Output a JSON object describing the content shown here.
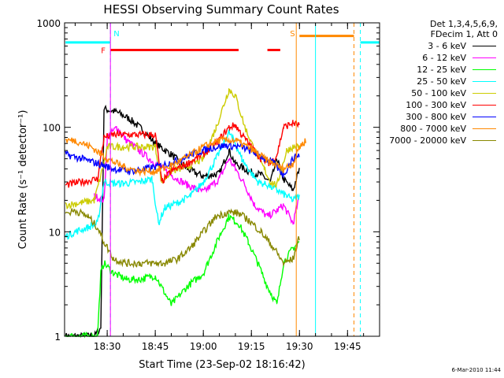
{
  "chart_data": {
    "type": "line",
    "title": "HESSI Observing Summary Count Rates",
    "xlabel": "Start Time (23-Sep-02 18:16:42)",
    "ylabel": "Count Rate (s⁻¹ detector⁻¹)",
    "y_scale": "log",
    "ylim": [
      1,
      1000
    ],
    "xlim": [
      "18:16:42",
      "19:55:00"
    ],
    "x_ticks": [
      "18:30",
      "18:45",
      "19:00",
      "19:15",
      "19:30",
      "19:45"
    ],
    "y_ticks": [
      "1",
      "10",
      "100",
      "1000"
    ],
    "legend_header": [
      "Det 1,3,4,5,6,9,",
      "FDecim 1, Att 0"
    ],
    "legend_placement": "right",
    "series": [
      {
        "name": "3 - 6 keV",
        "color": "#000000",
        "x": [
          "18:17",
          "18:26",
          "18:28",
          "18:29",
          "18:33",
          "18:37",
          "18:41",
          "18:45",
          "18:50",
          "18:55",
          "19:00",
          "19:05",
          "19:08",
          "19:10",
          "19:14",
          "19:18",
          "19:21",
          "19:23",
          "19:25",
          "19:28",
          "19:30"
        ],
        "values": [
          1,
          1,
          1.2,
          150,
          140,
          120,
          95,
          70,
          55,
          40,
          34,
          36,
          60,
          45,
          38,
          35,
          30,
          50,
          32,
          25,
          40
        ]
      },
      {
        "name": "6 - 12 keV",
        "color": "#ff00ff",
        "x": [
          "18:26",
          "18:29",
          "18:30",
          "18:33",
          "18:36",
          "18:40",
          "18:45",
          "18:50",
          "18:55",
          "19:00",
          "19:05",
          "19:08",
          "19:10",
          "19:13",
          "19:16",
          "19:20",
          "19:23",
          "19:25",
          "19:28",
          "19:30"
        ],
        "values": [
          22,
          20,
          80,
          100,
          75,
          60,
          45,
          35,
          28,
          24,
          32,
          50,
          40,
          28,
          18,
          14,
          16,
          18,
          12,
          22
        ]
      },
      {
        "name": "12 - 25 keV",
        "color": "#00ff00",
        "x": [
          "18:17",
          "18:22",
          "18:27",
          "18:28",
          "18:29",
          "18:32",
          "18:36",
          "18:40",
          "18:45",
          "18:50",
          "18:55",
          "19:00",
          "19:05",
          "19:08",
          "19:11",
          "19:14",
          "19:17",
          "19:20",
          "19:23",
          "19:25",
          "19:28",
          "19:30"
        ],
        "values": [
          1,
          1,
          1,
          4,
          5,
          4,
          3.5,
          3.5,
          3.8,
          2,
          3,
          4,
          9,
          14,
          12,
          8,
          5,
          3,
          2,
          5,
          7,
          8
        ]
      },
      {
        "name": "25 - 50 keV",
        "color": "#00ffff",
        "x": [
          "18:17",
          "18:20",
          "18:24",
          "18:27",
          "18:29",
          "18:32",
          "18:35",
          "18:40",
          "18:44",
          "18:46",
          "18:48",
          "18:52",
          "18:56",
          "19:00",
          "19:04",
          "19:08",
          "19:10",
          "19:12",
          "19:14",
          "19:17",
          "19:20",
          "19:23",
          "19:26",
          "19:28",
          "19:30"
        ],
        "values": [
          9,
          10,
          11,
          12,
          30,
          29,
          29,
          30,
          32,
          12,
          17,
          19,
          22,
          30,
          50,
          90,
          70,
          50,
          40,
          30,
          28,
          25,
          22,
          20,
          22
        ]
      },
      {
        "name": "50 - 100 keV",
        "color": "#cccc00",
        "x": [
          "18:17",
          "18:22",
          "18:26",
          "18:29",
          "18:30",
          "18:35",
          "18:40",
          "18:45",
          "18:47",
          "18:50",
          "18:55",
          "19:00",
          "19:04",
          "19:08",
          "19:10",
          "19:13",
          "19:16",
          "19:19",
          "19:21",
          "19:23",
          "19:26",
          "19:28",
          "19:30"
        ],
        "values": [
          18,
          19,
          20,
          45,
          65,
          65,
          65,
          65,
          30,
          38,
          42,
          50,
          100,
          230,
          200,
          100,
          60,
          40,
          30,
          28,
          60,
          65,
          65
        ]
      },
      {
        "name": "100 - 300 keV",
        "color": "#ff0000",
        "x": [
          "18:17",
          "18:22",
          "18:27",
          "18:29",
          "18:32",
          "18:35",
          "18:40",
          "18:45",
          "18:47",
          "18:50",
          "18:55",
          "19:00",
          "19:04",
          "19:08",
          "19:10",
          "19:12",
          "19:15",
          "19:18",
          "19:21",
          "19:23",
          "19:25",
          "19:28",
          "19:30"
        ],
        "values": [
          28,
          30,
          32,
          80,
          85,
          85,
          85,
          85,
          30,
          38,
          45,
          55,
          70,
          100,
          105,
          85,
          65,
          50,
          45,
          55,
          100,
          110,
          105
        ]
      },
      {
        "name": "300 - 800 keV",
        "color": "#0000ff",
        "x": [
          "18:17",
          "18:22",
          "18:27",
          "18:32",
          "18:37",
          "18:42",
          "18:47",
          "18:52",
          "18:57",
          "19:02",
          "19:07",
          "19:12",
          "19:17",
          "19:22",
          "19:25",
          "19:28",
          "19:30"
        ],
        "values": [
          55,
          50,
          45,
          40,
          38,
          40,
          43,
          48,
          56,
          63,
          67,
          65,
          55,
          45,
          35,
          50,
          55
        ]
      },
      {
        "name": "800 - 7000 keV",
        "color": "#ff8800",
        "x": [
          "18:17",
          "18:20",
          "18:25",
          "18:30",
          "18:35",
          "18:40",
          "18:45",
          "18:50",
          "18:55",
          "19:00",
          "19:05",
          "19:10",
          "19:15",
          "19:20",
          "19:25",
          "19:28",
          "19:30",
          "19:32"
        ],
        "values": [
          75,
          75,
          65,
          50,
          42,
          38,
          38,
          43,
          52,
          65,
          75,
          75,
          62,
          48,
          40,
          45,
          65,
          75
        ]
      },
      {
        "name": "7000 - 20000 keV",
        "color": "#888800",
        "x": [
          "18:17",
          "18:20",
          "18:24",
          "18:27",
          "18:29",
          "18:32",
          "18:36",
          "18:40",
          "18:44",
          "18:48",
          "18:52",
          "18:56",
          "19:00",
          "19:04",
          "19:08",
          "19:11",
          "19:14",
          "19:18",
          "19:22",
          "19:25",
          "19:28",
          "19:30"
        ],
        "values": [
          15,
          16,
          14,
          11,
          8,
          5.5,
          5,
          5,
          5,
          5,
          5.5,
          7,
          10,
          14,
          15.5,
          15,
          13,
          10,
          7,
          5,
          5.5,
          9
        ]
      }
    ],
    "annotations": [
      {
        "text": "N",
        "x": "18:31",
        "color": "#00ffff",
        "style": "dashed-vertical"
      },
      {
        "text": "F",
        "x": "18:31",
        "color": "#ff0000",
        "y": 550
      },
      {
        "text": "S",
        "x": "19:30",
        "color": "#ff8800",
        "style": "solid-vertical"
      }
    ],
    "flag_bars": [
      {
        "color": "#00ffff",
        "from": "18:17",
        "to": "18:31",
        "y": 650
      },
      {
        "color": "#00ffff",
        "from": "19:49",
        "to": "19:55",
        "y": 650
      },
      {
        "color": "#ff0000",
        "from": "18:31",
        "to": "19:11",
        "y": 550
      },
      {
        "color": "#ff0000",
        "from": "19:20",
        "to": "19:24",
        "y": 550
      },
      {
        "color": "#ff8800",
        "from": "19:30",
        "to": "19:47",
        "y": 750
      }
    ],
    "vertical_markers": [
      {
        "color": "#00ffff",
        "x": "18:31",
        "style": "dashed"
      },
      {
        "color": "#ff00ff",
        "x": "18:31",
        "style": "solid"
      },
      {
        "color": "#ff8800",
        "x": "19:29",
        "style": "solid"
      },
      {
        "color": "#00ffff",
        "x": "19:35",
        "style": "solid"
      },
      {
        "color": "#ff8800",
        "x": "19:47",
        "style": "dashed"
      },
      {
        "color": "#00ffff",
        "x": "19:49",
        "style": "dashed"
      }
    ]
  },
  "footer": {
    "date": "6-Mar-2010 11:44"
  }
}
